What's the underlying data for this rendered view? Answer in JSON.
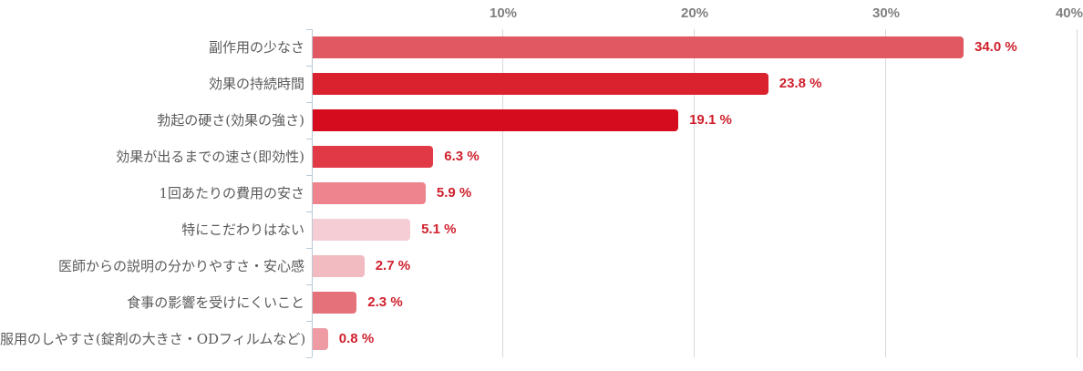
{
  "chart_data": {
    "type": "bar",
    "orientation": "horizontal",
    "title": "",
    "xlabel": "",
    "ylabel": "",
    "xlim": [
      0,
      40
    ],
    "grid": true,
    "legend": false,
    "categories": [
      "副作用の少なさ",
      "効果の持続時間",
      "勃起の硬さ(効果の強さ)",
      "効果が出るまでの速さ(即効性)",
      "1回あたりの費用の安さ",
      "特にこだわりはない",
      "医師からの説明の分かりやすさ・安心感",
      "食事の影響を受けにくいこと",
      "服用のしやすさ(錠剤の大きさ・ODフィルムなど)"
    ],
    "values": [
      34.0,
      23.8,
      19.1,
      6.3,
      5.9,
      5.1,
      2.7,
      2.3,
      0.8
    ],
    "value_labels": [
      "34.0 %",
      "23.8 %",
      "19.1 %",
      "6.3 %",
      "5.9 %",
      "5.1 %",
      "2.7 %",
      "2.3 %",
      "0.8 %"
    ],
    "bar_colors": [
      "#e15863",
      "#da222f",
      "#d50c1d",
      "#e13a46",
      "#ed848e",
      "#f5cdd4",
      "#f2bac1",
      "#e5717b",
      "#ef9ba4"
    ],
    "value_label_color": "#d0202d",
    "category_label_color": "#5a5a5a",
    "axis": {
      "tick_labels": [
        "10%",
        "20%",
        "30%",
        "40%"
      ],
      "tick_values": [
        10,
        20,
        30,
        40
      ],
      "tick_label_color": "#7f7f7f",
      "gridline_color": "#d8d8d8",
      "axis_line_color": "#b9cad4"
    }
  }
}
